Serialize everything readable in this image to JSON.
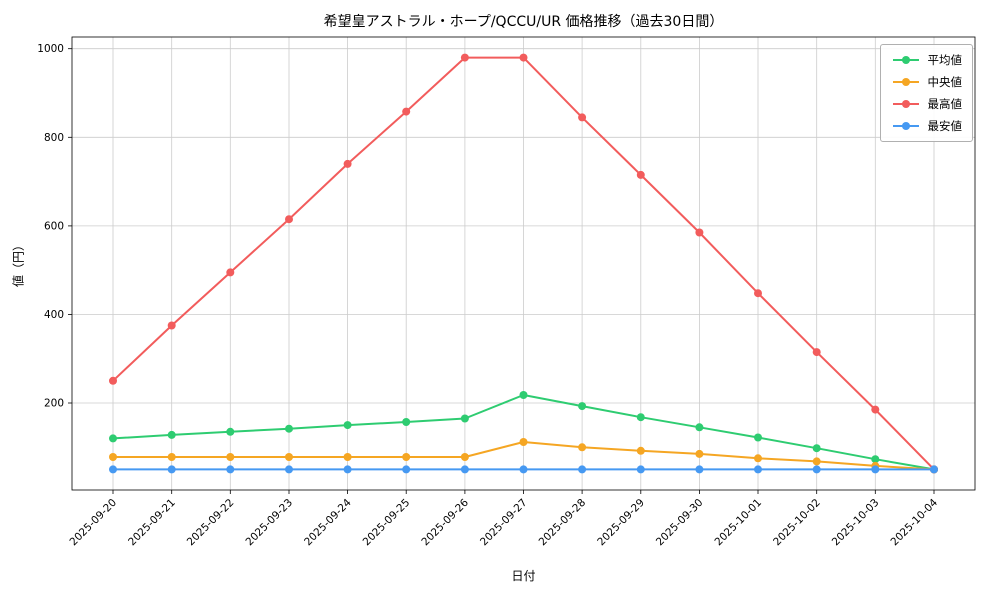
{
  "chart_data": {
    "type": "line",
    "title": "希望皇アストラル・ホープ/QCCU/UR 価格推移（過去30日間）",
    "xlabel": "日付",
    "ylabel": "値（円）",
    "x": [
      "2025-09-20",
      "2025-09-21",
      "2025-09-22",
      "2025-09-23",
      "2025-09-24",
      "2025-09-25",
      "2025-09-26",
      "2025-09-27",
      "2025-09-28",
      "2025-09-29",
      "2025-09-30",
      "2025-10-01",
      "2025-10-02",
      "2025-10-03",
      "2025-10-04"
    ],
    "series": [
      {
        "name": "平均値",
        "color": "#2ecc71",
        "values": [
          120,
          128,
          135,
          142,
          150,
          157,
          165,
          218,
          193,
          168,
          145,
          122,
          98,
          73,
          50
        ]
      },
      {
        "name": "中央値",
        "color": "#f5a623",
        "values": [
          78,
          78,
          78,
          78,
          78,
          78,
          78,
          112,
          100,
          92,
          85,
          75,
          68,
          58,
          50
        ]
      },
      {
        "name": "最高値",
        "color": "#f25c5c",
        "values": [
          250,
          375,
          495,
          615,
          740,
          858,
          980,
          980,
          845,
          715,
          585,
          448,
          315,
          185,
          50
        ]
      },
      {
        "name": "最安値",
        "color": "#4699f2",
        "values": [
          50,
          50,
          50,
          50,
          50,
          50,
          50,
          50,
          50,
          50,
          50,
          50,
          50,
          50,
          50
        ]
      }
    ],
    "yticks": [
      200,
      400,
      600,
      800,
      1000
    ],
    "ylim": [
      3.5,
      1026.5
    ],
    "grid": true,
    "grid_color": "#cccccc",
    "legend_position": "upper right",
    "background": "#ffffff"
  }
}
